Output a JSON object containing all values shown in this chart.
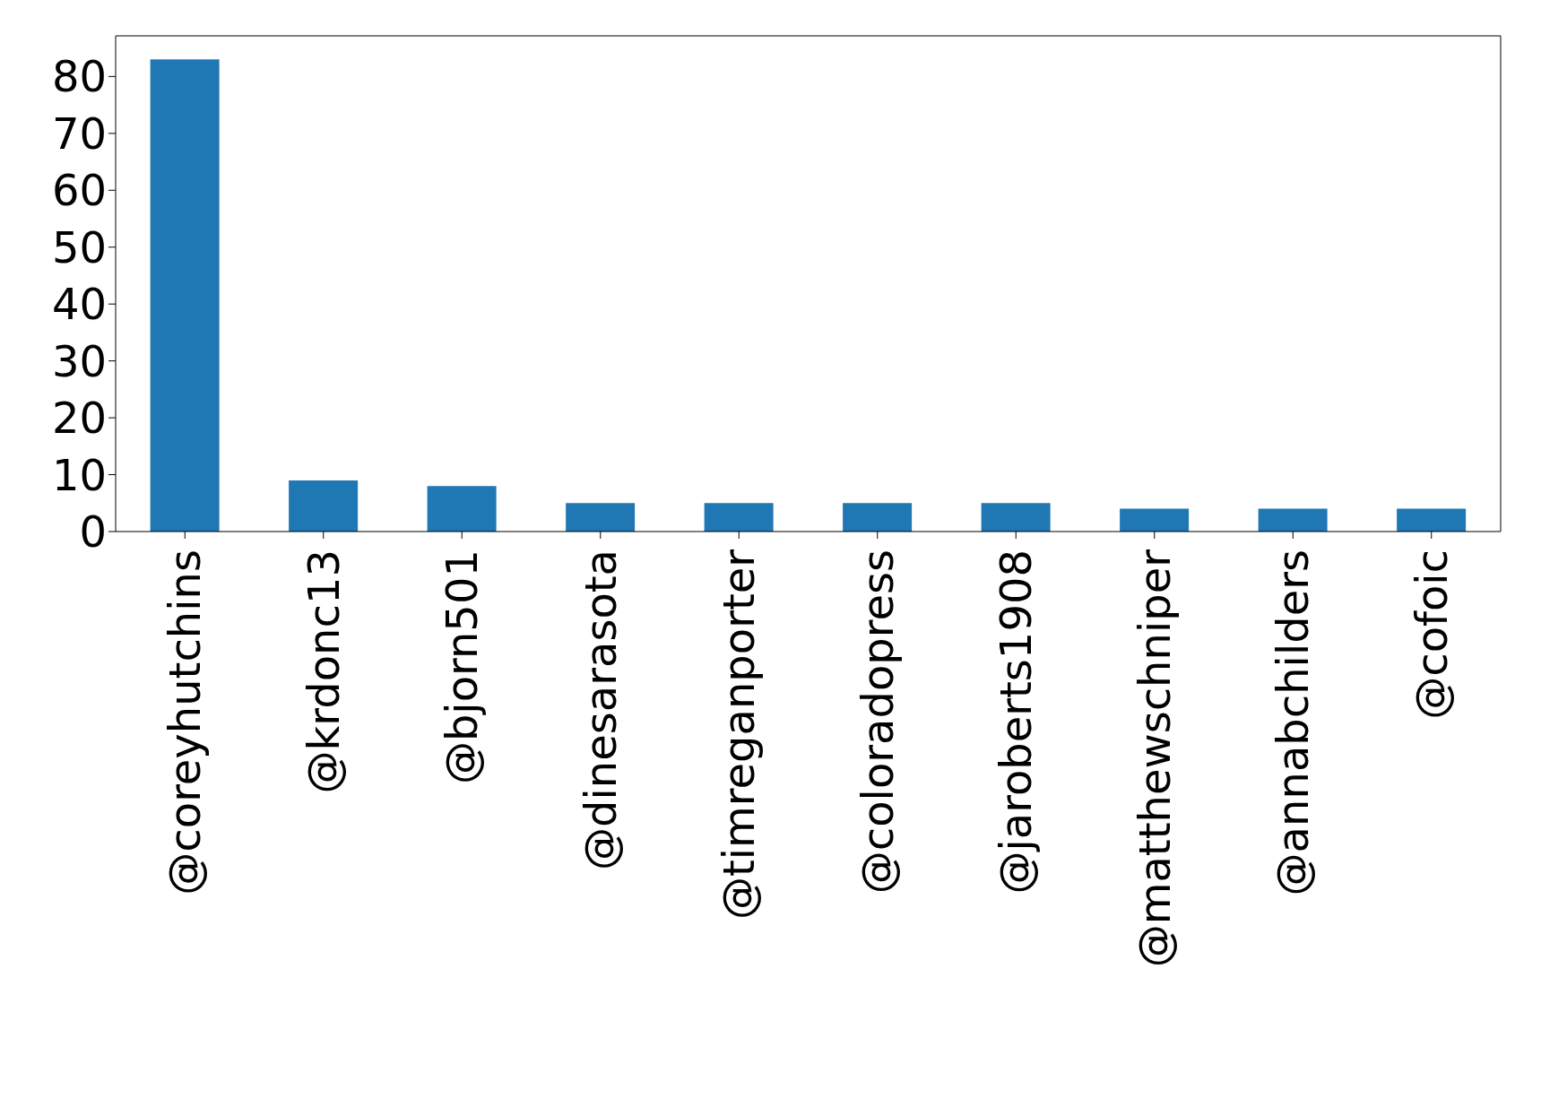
{
  "chart_data": {
    "type": "bar",
    "categories": [
      "@coreyhutchins",
      "@krdonc13",
      "@bjorn501",
      "@dinesarasota",
      "@timreganporter",
      "@coloradopress",
      "@jaroberts1908",
      "@matthewschniper",
      "@annabchilders",
      "@cofoic"
    ],
    "values": [
      83,
      9,
      8,
      5,
      5,
      5,
      5,
      4,
      4,
      4
    ],
    "color": "#1f77b4",
    "ylim": [
      0,
      87.15
    ],
    "yticks": [
      0,
      10,
      20,
      30,
      40,
      50,
      60,
      70,
      80
    ],
    "grid": false,
    "legend": false
  }
}
